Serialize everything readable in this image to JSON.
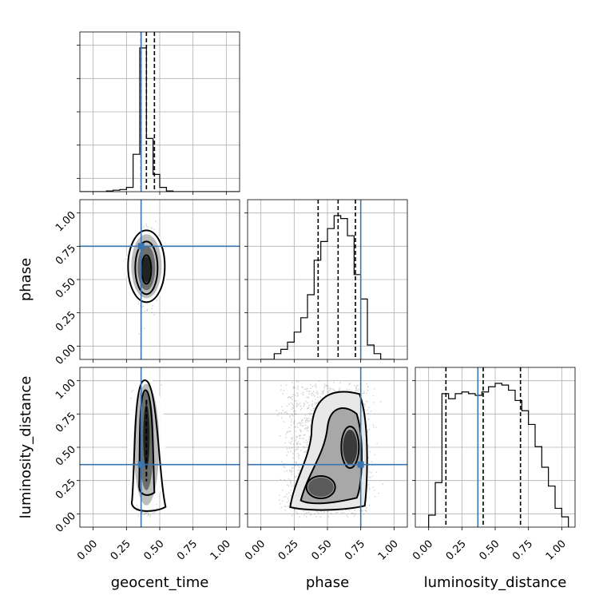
{
  "chart_data": {
    "type": "corner",
    "parameters": [
      "geocent_time",
      "phase",
      "luminosity_distance"
    ],
    "axis_labels": [
      "geocent_time",
      "phase",
      "luminosity_distance"
    ],
    "tick_values": [
      0.0,
      0.25,
      0.5,
      0.75,
      1.0
    ],
    "tick_labels": [
      "0.00",
      "0.25",
      "0.50",
      "0.75",
      "1.00"
    ],
    "axis_range": [
      -0.1,
      1.1
    ],
    "grid": true,
    "truth_color": "#3b75af",
    "truths": {
      "geocent_time": 0.36,
      "phase": 0.75,
      "luminosity_distance": 0.37
    },
    "quantiles": {
      "geocent_time": [
        0.36,
        0.4,
        0.46
      ],
      "phase": [
        0.43,
        0.58,
        0.71
      ],
      "luminosity_distance": [
        0.13,
        0.41,
        0.69
      ]
    },
    "histograms": {
      "geocent_time": {
        "bin_start": -0.1,
        "bin_width": 0.05,
        "counts": [
          0,
          0,
          0,
          0,
          0.005,
          0.01,
          0.015,
          0.03,
          0.26,
          1.0,
          0.37,
          0.12,
          0.03,
          0.005,
          0,
          0,
          0,
          0,
          0,
          0,
          0,
          0,
          0,
          0
        ]
      },
      "phase": {
        "bin_start": 0.0,
        "bin_width": 0.05,
        "counts": [
          0,
          0,
          0.04,
          0.07,
          0.12,
          0.19,
          0.29,
          0.45,
          0.69,
          0.82,
          0.91,
          1.0,
          0.98,
          0.86,
          0.59,
          0.42,
          0.1,
          0.04,
          0,
          0
        ]
      },
      "luminosity_distance": {
        "bin_start": 0.0,
        "bin_width": 0.05,
        "counts": [
          0.07,
          0.26,
          0.78,
          0.75,
          0.78,
          0.79,
          0.78,
          0.77,
          0.79,
          0.82,
          0.84,
          0.83,
          0.8,
          0.74,
          0.68,
          0.6,
          0.47,
          0.35,
          0.24,
          0.11,
          0.06
        ]
      }
    },
    "scatter_panels": [
      {
        "x": "geocent_time",
        "y": "phase",
        "x_center": 0.4,
        "x_spread": 0.04,
        "y_mean": 0.6,
        "y_spread": 0.2
      },
      {
        "x": "geocent_time",
        "y": "luminosity_distance",
        "x_center": 0.4,
        "x_spread": 0.035,
        "y_mean": 0.5,
        "y_spread": 0.28
      },
      {
        "x": "phase",
        "y": "luminosity_distance",
        "x_center": 0.6,
        "x_spread": 0.15,
        "y_mean": 0.45,
        "y_spread": 0.28
      }
    ]
  }
}
